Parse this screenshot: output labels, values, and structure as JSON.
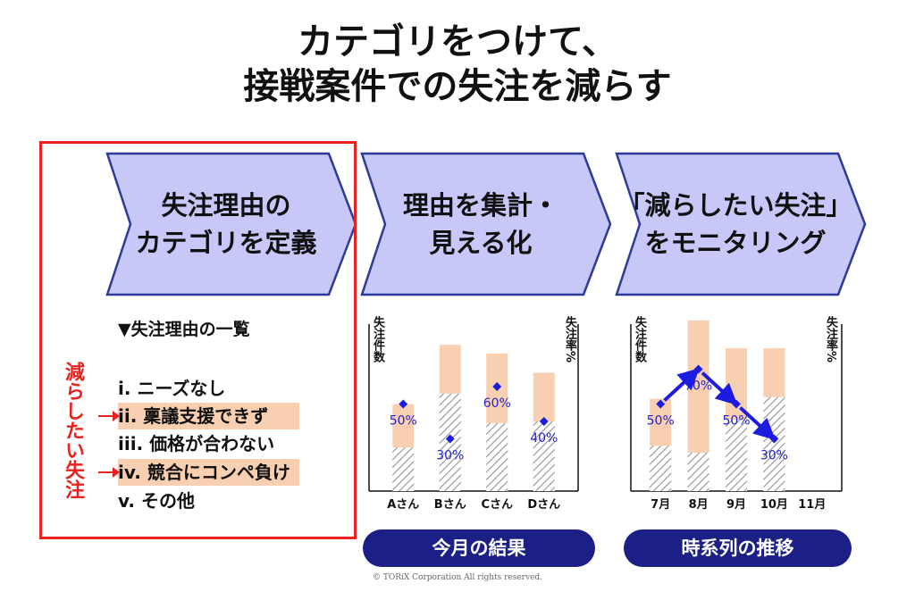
{
  "title": {
    "line1": "カテゴリをつけて、",
    "line2": "接戦案件での失注を減らす"
  },
  "steps": [
    {
      "line1": "失注理由の",
      "line2": "カテゴリを定義"
    },
    {
      "line1": "理由を集計・",
      "line2": "見える化"
    },
    {
      "line1": "「減らしたい失注」",
      "line2": "をモニタリング"
    }
  ],
  "list": {
    "heading": "▼失注理由の一覧",
    "items": [
      {
        "label": "i. ニーズなし",
        "highlight": false
      },
      {
        "label": "ii. 稟議支援できず",
        "highlight": true
      },
      {
        "label": "iii. 価格が合わない",
        "highlight": false
      },
      {
        "label": "iv. 競合にコンペ負け",
        "highlight": true
      },
      {
        "label": "v. その他",
        "highlight": false
      }
    ],
    "side_label": "減らしたい失注"
  },
  "chart_labels": {
    "left_axis": "失注件数",
    "right_axis": "失注率%"
  },
  "chart_data": [
    {
      "type": "bar",
      "categories": [
        "Aさん",
        "Bさん",
        "Cさん",
        "Dさん"
      ],
      "series": [
        {
          "name": "",
          "values": [
            50,
            84,
            79,
            68
          ]
        },
        {
          "name": "",
          "values": [
            25,
            56,
            39,
            40
          ]
        }
      ],
      "rate_percent": [
        50,
        30,
        60,
        40
      ],
      "rate_labels": [
        "50%",
        "30%",
        "60%",
        "40%"
      ],
      "ylim": [
        0,
        100
      ]
    },
    {
      "type": "bar",
      "categories": [
        "7月",
        "8月",
        "9月",
        "10月",
        "11月"
      ],
      "series": [
        {
          "name": "",
          "values": [
            53,
            98,
            82,
            82,
            null
          ]
        },
        {
          "name": "",
          "values": [
            26,
            22,
            41,
            54,
            null
          ]
        }
      ],
      "rate_percent": [
        50,
        70,
        50,
        30,
        null
      ],
      "rate_labels": [
        "50%",
        "70%",
        "50%",
        "30%",
        ""
      ],
      "ylim": [
        0,
        100
      ]
    }
  ],
  "pills": [
    "今月の結果",
    "時系列の推移"
  ],
  "copyright": "© TORiX Corporation All rights reserved.",
  "colors": {
    "chevron_fill": "#c7c8f7",
    "chevron_stroke": "#2e3a9a",
    "accent_red": "#e8231f",
    "bar_peach": "#f8cfb0",
    "marker_blue": "#1c1ce0",
    "pill_navy": "#1b1f86"
  }
}
